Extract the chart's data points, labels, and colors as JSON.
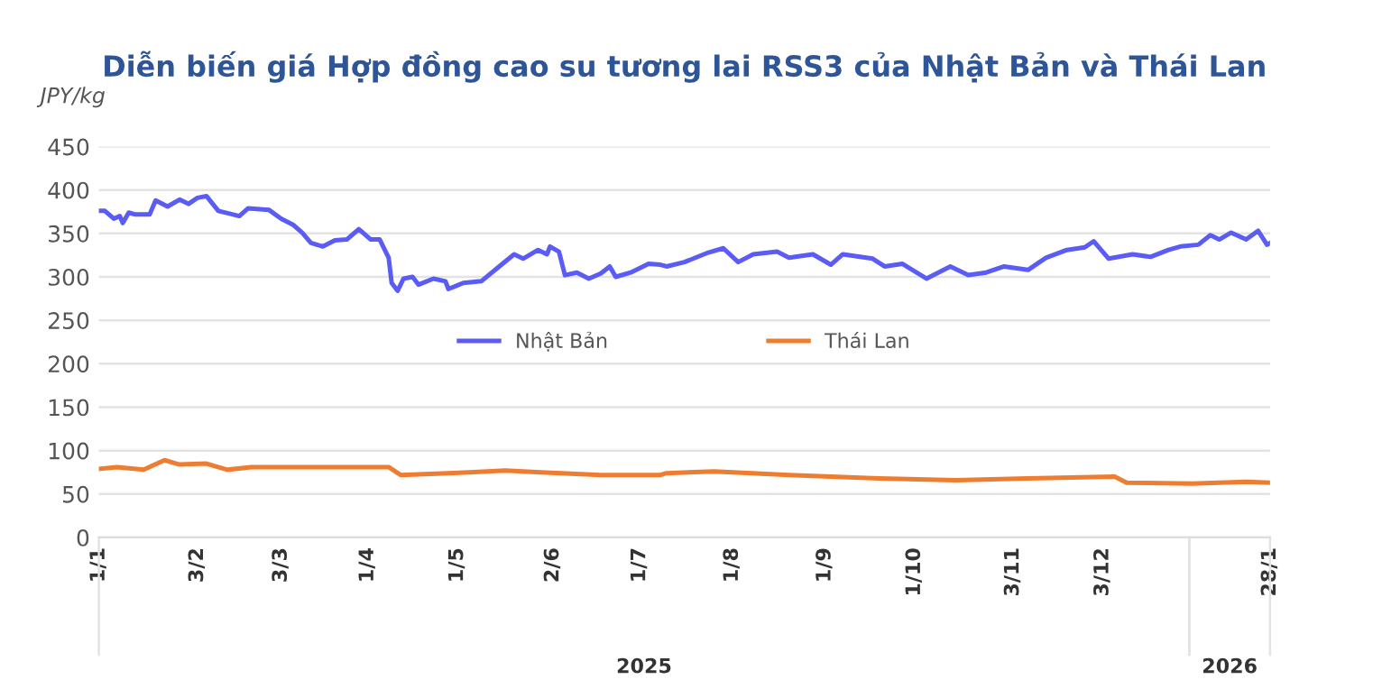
{
  "chart_data": {
    "type": "line",
    "title": "Diễn biến giá Hợp đồng cao su tương lai RSS3 của Nhật Bản và Thái Lan",
    "ylabel": "JPY/kg",
    "ylim": [
      0,
      450
    ],
    "yticks": [
      0,
      50,
      100,
      150,
      200,
      250,
      300,
      350,
      400,
      450
    ],
    "xlim": [
      "2025-01-01",
      "2026-01-28"
    ],
    "xticks": [
      {
        "value": "2025-01-01",
        "label": "1/1"
      },
      {
        "value": "2025-02-03",
        "label": "3/2"
      },
      {
        "value": "2025-03-03",
        "label": "3/3"
      },
      {
        "value": "2025-04-01",
        "label": "1/4"
      },
      {
        "value": "2025-05-01",
        "label": "1/5"
      },
      {
        "value": "2025-06-02",
        "label": "2/6"
      },
      {
        "value": "2025-07-01",
        "label": "1/7"
      },
      {
        "value": "2025-08-01",
        "label": "1/8"
      },
      {
        "value": "2025-09-01",
        "label": "1/9"
      },
      {
        "value": "2025-10-01",
        "label": "1/10"
      },
      {
        "value": "2025-11-03",
        "label": "3/11"
      },
      {
        "value": "2025-12-03",
        "label": "3/12"
      },
      {
        "value": "2026-01-28",
        "label": "28/1"
      }
    ],
    "annotations": [
      "2025",
      "2026"
    ],
    "grid": "y",
    "legend": "center",
    "series": [
      {
        "name": "Nhật Bản",
        "color": "#5b5bf5",
        "x": [
          "2025-01-01",
          "2025-01-03",
          "2025-01-06",
          "2025-01-08",
          "2025-01-09",
          "2025-01-11",
          "2025-01-13",
          "2025-01-18",
          "2025-01-20",
          "2025-01-24",
          "2025-01-28",
          "2025-01-31",
          "2025-02-03",
          "2025-02-06",
          "2025-02-10",
          "2025-02-17",
          "2025-02-20",
          "2025-02-27",
          "2025-03-03",
          "2025-03-07",
          "2025-03-10",
          "2025-03-13",
          "2025-03-17",
          "2025-03-21",
          "2025-03-25",
          "2025-03-29",
          "2025-04-02",
          "2025-04-05",
          "2025-04-08",
          "2025-04-09",
          "2025-04-11",
          "2025-04-13",
          "2025-04-16",
          "2025-04-18",
          "2025-04-23",
          "2025-04-27",
          "2025-04-28",
          "2025-05-03",
          "2025-05-09",
          "2025-05-15",
          "2025-05-20",
          "2025-05-23",
          "2025-05-28",
          "2025-05-31",
          "2025-06-01",
          "2025-06-04",
          "2025-06-06",
          "2025-06-10",
          "2025-06-14",
          "2025-06-18",
          "2025-06-21",
          "2025-06-23",
          "2025-06-28",
          "2025-07-04",
          "2025-07-08",
          "2025-07-10",
          "2025-07-16",
          "2025-07-24",
          "2025-07-29",
          "2025-08-03",
          "2025-08-08",
          "2025-08-16",
          "2025-08-20",
          "2025-08-28",
          "2025-09-03",
          "2025-09-07",
          "2025-09-17",
          "2025-09-21",
          "2025-09-27",
          "2025-10-05",
          "2025-10-13",
          "2025-10-19",
          "2025-10-25",
          "2025-10-31",
          "2025-11-08",
          "2025-11-14",
          "2025-11-21",
          "2025-11-27",
          "2025-11-30",
          "2025-12-05",
          "2025-12-13",
          "2025-12-19",
          "2025-12-25",
          "2025-12-29",
          "2026-01-04",
          "2026-01-08",
          "2026-01-11",
          "2026-01-15",
          "2026-01-20",
          "2026-01-24",
          "2026-01-27",
          "2026-01-28"
        ],
        "values": [
          376,
          376,
          367,
          370,
          362,
          374,
          372,
          372,
          388,
          381,
          389,
          384,
          391,
          393,
          376,
          370,
          379,
          377,
          367,
          360,
          351,
          339,
          335,
          342,
          343,
          355,
          343,
          343,
          322,
          293,
          284,
          298,
          300,
          291,
          298,
          295,
          286,
          293,
          295,
          312,
          326,
          321,
          331,
          326,
          335,
          329,
          302,
          305,
          298,
          304,
          312,
          300,
          305,
          315,
          314,
          312,
          317,
          328,
          333,
          317,
          326,
          329,
          322,
          326,
          314,
          326,
          321,
          312,
          315,
          298,
          312,
          302,
          305,
          312,
          308,
          322,
          331,
          334,
          341,
          321,
          326,
          323,
          331,
          335,
          337,
          348,
          343,
          351,
          343,
          353,
          337,
          339
        ]
      },
      {
        "name": "Thái Lan",
        "color": "#ed7d31",
        "x": [
          "2025-01-01",
          "2025-01-07",
          "2025-01-16",
          "2025-01-23",
          "2025-01-28",
          "2025-02-06",
          "2025-02-13",
          "2025-02-21",
          "2025-03-09",
          "2025-03-21",
          "2025-04-08",
          "2025-04-12",
          "2025-05-05",
          "2025-05-17",
          "2025-05-29",
          "2025-06-18",
          "2025-07-08",
          "2025-07-10",
          "2025-07-26",
          "2025-08-20",
          "2025-09-19",
          "2025-10-15",
          "2025-11-08",
          "2025-12-07",
          "2025-12-11",
          "2026-01-02",
          "2026-01-20",
          "2026-01-28"
        ],
        "values": [
          79,
          81,
          78,
          89,
          84,
          85,
          78,
          81,
          81,
          81,
          81,
          72,
          75,
          77,
          75,
          72,
          72,
          74,
          76,
          72,
          68,
          66,
          68,
          70,
          63,
          62,
          64,
          63
        ]
      }
    ]
  }
}
